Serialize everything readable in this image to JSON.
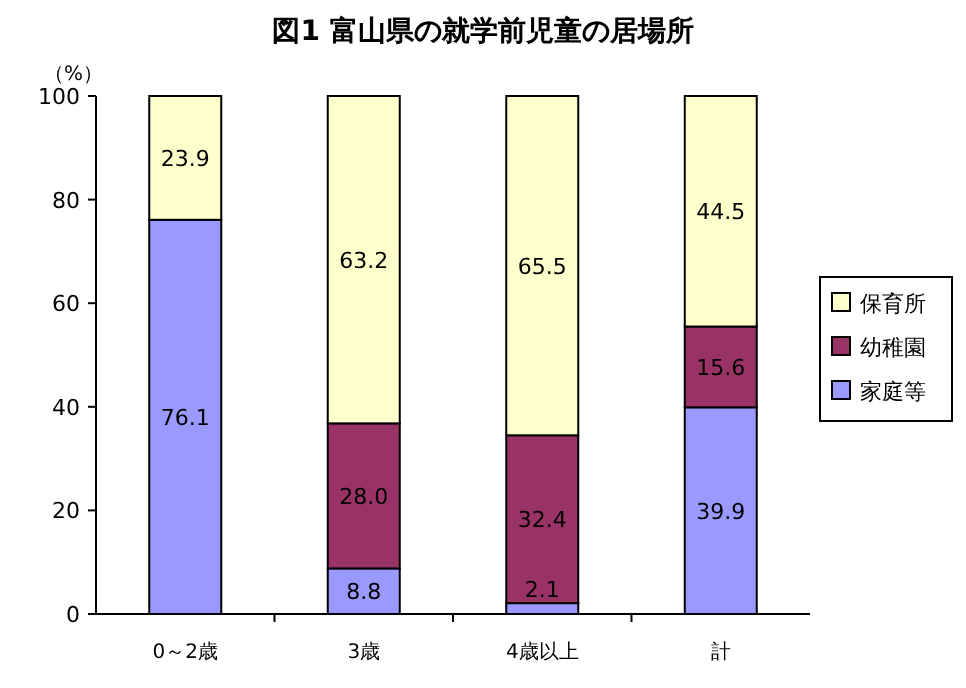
{
  "chart_data": {
    "type": "bar",
    "title": "図1 富山県の就学前児童の居場所",
    "ylabel": "（%）",
    "stacked": true,
    "legend": "right",
    "grid": false,
    "categories": [
      "0～2歳",
      "3歳",
      "4歳以上",
      "計"
    ],
    "ylim": [
      0,
      100
    ],
    "yticks": [
      0,
      20,
      40,
      60,
      80,
      100
    ],
    "series": [
      {
        "name": "家庭等",
        "color": "#9999ff",
        "values": [
          76.1,
          8.8,
          2.1,
          39.9
        ],
        "value_labels": [
          "76.1",
          "8.8",
          "2.1",
          "39.9"
        ]
      },
      {
        "name": "幼稚園",
        "color": "#993366",
        "values": [
          0,
          28.0,
          32.4,
          15.6
        ],
        "value_labels": [
          null,
          "28.0",
          "32.4",
          "15.6"
        ]
      },
      {
        "name": "保育所",
        "color": "#ffffcc",
        "values": [
          23.9,
          63.2,
          65.5,
          44.5
        ],
        "value_labels": [
          "23.9",
          "63.2",
          "65.5",
          "44.5"
        ]
      }
    ]
  }
}
